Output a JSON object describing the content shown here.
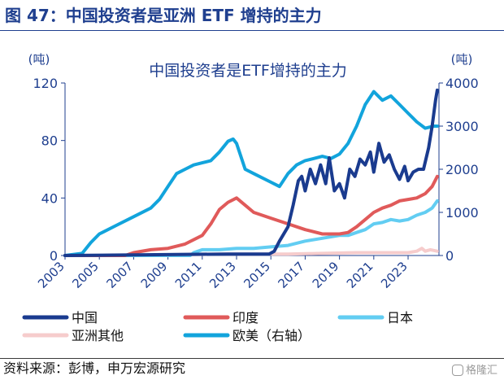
{
  "header": {
    "title": "图 47：中国投资者是亚洲 ETF 增持的主力"
  },
  "footer": {
    "source": "资料来源：彭博，申万宏源研究",
    "watermark": "格隆汇"
  },
  "chart_data": {
    "type": "line",
    "title": "中国投资者是ETF增持的主力",
    "ylabel_left": "(吨)",
    "ylabel_right": "(吨)",
    "y_left_range": [
      0,
      120
    ],
    "y_left_ticks": [
      "0",
      "40",
      "80",
      "120"
    ],
    "y_right_range": [
      0,
      4000
    ],
    "y_right_ticks": [
      "0",
      "1000",
      "2000",
      "3000",
      "4000"
    ],
    "x_range": [
      2003,
      2024.8
    ],
    "x_ticks": [
      "2003",
      "2005",
      "2007",
      "2009",
      "2011",
      "2013",
      "2015",
      "2017",
      "2019",
      "2021",
      "2023"
    ],
    "grid": false,
    "legend_position": "bottom",
    "colors": {
      "china": "#1a3b8f",
      "india": "#e05a5a",
      "japan": "#62cdf2",
      "other_asia": "#f6cccc",
      "europe_us": "#12a4dc",
      "axis_left": "#1f3f8f",
      "axis_right": "#1f3f8f"
    },
    "series": [
      {
        "name": "中国",
        "key": "china",
        "axis": "left",
        "x": [
          2003,
          2012.5,
          2014.9,
          2015.2,
          2015.5,
          2016.0,
          2016.3,
          2016.6,
          2016.8,
          2017.0,
          2017.3,
          2017.6,
          2017.9,
          2018.2,
          2018.4,
          2018.7,
          2019.0,
          2019.3,
          2019.6,
          2019.9,
          2020.2,
          2020.5,
          2020.8,
          2021.0,
          2021.3,
          2021.6,
          2021.9,
          2022.2,
          2022.5,
          2022.8,
          2023.0,
          2023.3,
          2023.6,
          2023.9,
          2024.2,
          2024.4,
          2024.6,
          2024.7
        ],
        "values": [
          0,
          1,
          1,
          3,
          10,
          20,
          35,
          52,
          55,
          45,
          60,
          50,
          63,
          50,
          68,
          45,
          50,
          40,
          60,
          55,
          67,
          63,
          72,
          58,
          78,
          65,
          70,
          60,
          53,
          62,
          52,
          58,
          60,
          60,
          75,
          90,
          108,
          115
        ]
      },
      {
        "name": "印度",
        "key": "india",
        "axis": "left",
        "x": [
          2003,
          2006.5,
          2007.0,
          2008.0,
          2009.0,
          2010.0,
          2011.0,
          2011.5,
          2012.0,
          2012.5,
          2013.0,
          2013.5,
          2014.0,
          2015.0,
          2016.0,
          2017.0,
          2018.0,
          2019.0,
          2019.5,
          2020.0,
          2020.5,
          2021.0,
          2021.5,
          2022.0,
          2022.5,
          2023.0,
          2023.5,
          2024.0,
          2024.4,
          2024.7
        ],
        "values": [
          0,
          0,
          2,
          4,
          5,
          8,
          14,
          22,
          32,
          37,
          40,
          35,
          30,
          26,
          22,
          18,
          15,
          15,
          16,
          20,
          25,
          30,
          33,
          35,
          38,
          39,
          40,
          43,
          48,
          55
        ]
      },
      {
        "name": "日本",
        "key": "japan",
        "axis": "left",
        "x": [
          2003,
          2010.3,
          2010.5,
          2011.0,
          2012.0,
          2013.0,
          2014.0,
          2015.0,
          2016.0,
          2017.0,
          2018.0,
          2019.0,
          2019.5,
          2020.0,
          2020.5,
          2021.0,
          2021.5,
          2022.0,
          2022.5,
          2023.0,
          2023.5,
          2024.0,
          2024.4,
          2024.7
        ],
        "values": [
          0,
          0,
          2,
          4,
          4,
          5,
          5,
          6,
          7,
          10,
          12,
          14,
          14,
          16,
          18,
          22,
          23,
          25,
          24,
          25,
          28,
          30,
          33,
          38
        ]
      },
      {
        "name": "亚洲其他",
        "key": "other_asia",
        "axis": "left",
        "x": [
          2003,
          2008.0,
          2010.0,
          2012.0,
          2014.0,
          2016.0,
          2018.0,
          2020.0,
          2022.0,
          2023.0,
          2023.5,
          2023.8,
          2024.0,
          2024.3,
          2024.7
        ],
        "values": [
          0,
          0,
          0.5,
          1,
          1,
          1,
          1.5,
          2,
          2,
          2,
          3,
          5,
          3,
          4,
          3
        ]
      },
      {
        "name": "欧美（右轴）",
        "key": "europe_us",
        "axis": "right",
        "x": [
          2003,
          2004.0,
          2004.5,
          2005.0,
          2006.0,
          2007.0,
          2008.0,
          2008.5,
          2009.0,
          2009.5,
          2010.0,
          2010.5,
          2011.0,
          2011.5,
          2012.0,
          2012.5,
          2012.8,
          2013.0,
          2013.5,
          2014.0,
          2015.0,
          2015.5,
          2016.0,
          2016.5,
          2017.0,
          2017.5,
          2018.0,
          2018.5,
          2019.0,
          2019.5,
          2020.0,
          2020.5,
          2021.0,
          2021.5,
          2022.0,
          2022.5,
          2023.0,
          2023.5,
          2024.0,
          2024.5,
          2024.7
        ],
        "values": [
          0,
          50,
          300,
          500,
          700,
          900,
          1100,
          1300,
          1600,
          1900,
          2000,
          2100,
          2150,
          2200,
          2400,
          2650,
          2700,
          2600,
          2000,
          1900,
          1700,
          1600,
          1900,
          2100,
          2200,
          2250,
          2300,
          2250,
          2350,
          2600,
          3000,
          3500,
          3800,
          3600,
          3700,
          3500,
          3300,
          3100,
          2950,
          3000,
          3000
        ]
      }
    ]
  }
}
